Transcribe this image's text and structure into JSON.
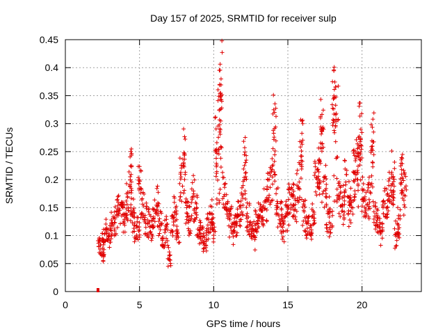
{
  "chart_data": {
    "type": "scatter",
    "title": "Day 157 of 2025, SRMTID for receiver sulp",
    "xlabel": "GPS time / hours",
    "ylabel": "SRMTID / TECUs",
    "xlim": [
      0,
      24
    ],
    "ylim": [
      0,
      0.45
    ],
    "xticks": [
      0,
      5,
      10,
      15,
      20
    ],
    "xtick_labels": [
      "0",
      "5",
      "10",
      "15",
      "20"
    ],
    "yticks": [
      0,
      0.05,
      0.1,
      0.15,
      0.2,
      0.25,
      0.3,
      0.35,
      0.4,
      0.45
    ],
    "ytick_labels": [
      "0",
      "0.05",
      "0.1",
      "0.15",
      "0.2",
      "0.25",
      "0.3",
      "0.35",
      "0.4",
      "0.45"
    ],
    "grid": true,
    "marker": "+",
    "color": "#e00000",
    "series": [
      {
        "name": "SRMTID",
        "x": [
          2.3,
          2.5,
          2.6,
          2.8,
          3.0,
          3.2,
          3.4,
          3.6,
          3.8,
          4.0,
          4.2,
          4.4,
          4.5,
          4.7,
          4.9,
          5.0,
          5.2,
          5.4,
          5.6,
          5.8,
          6.0,
          6.2,
          6.4,
          6.6,
          6.8,
          7.0,
          7.2,
          7.4,
          7.6,
          7.8,
          8.0,
          8.2,
          8.4,
          8.6,
          8.8,
          9.0,
          9.2,
          9.4,
          9.6,
          9.8,
          10.0,
          10.2,
          10.4,
          10.5,
          10.7,
          10.9,
          11.1,
          11.3,
          11.5,
          11.7,
          11.9,
          12.1,
          12.3,
          12.5,
          12.7,
          12.9,
          13.1,
          13.3,
          13.5,
          13.7,
          13.9,
          14.1,
          14.3,
          14.5,
          14.7,
          14.9,
          15.1,
          15.3,
          15.5,
          15.7,
          15.9,
          16.1,
          16.3,
          16.5,
          16.7,
          16.9,
          17.1,
          17.3,
          17.5,
          17.7,
          17.9,
          18.1,
          18.3,
          18.5,
          18.7,
          18.9,
          19.1,
          19.3,
          19.5,
          19.7,
          19.9,
          20.1,
          20.3,
          20.5,
          20.7,
          20.9,
          21.1,
          21.3,
          21.5,
          21.7,
          21.9,
          22.1,
          22.3,
          22.5,
          22.7,
          22.9
        ],
        "y": [
          0.085,
          0.07,
          0.095,
          0.11,
          0.1,
          0.12,
          0.13,
          0.14,
          0.15,
          0.13,
          0.16,
          0.22,
          0.14,
          0.12,
          0.11,
          0.2,
          0.16,
          0.13,
          0.12,
          0.11,
          0.13,
          0.15,
          0.12,
          0.09,
          0.11,
          0.06,
          0.12,
          0.14,
          0.1,
          0.19,
          0.25,
          0.15,
          0.13,
          0.17,
          0.14,
          0.11,
          0.1,
          0.09,
          0.12,
          0.13,
          0.11,
          0.27,
          0.33,
          0.39,
          0.18,
          0.15,
          0.13,
          0.11,
          0.12,
          0.14,
          0.16,
          0.24,
          0.13,
          0.11,
          0.1,
          0.12,
          0.14,
          0.13,
          0.16,
          0.19,
          0.2,
          0.3,
          0.15,
          0.13,
          0.12,
          0.14,
          0.16,
          0.17,
          0.15,
          0.2,
          0.29,
          0.14,
          0.12,
          0.11,
          0.13,
          0.2,
          0.22,
          0.29,
          0.19,
          0.14,
          0.12,
          0.35,
          0.3,
          0.17,
          0.15,
          0.2,
          0.16,
          0.15,
          0.22,
          0.25,
          0.29,
          0.18,
          0.16,
          0.17,
          0.26,
          0.14,
          0.13,
          0.11,
          0.16,
          0.15,
          0.17,
          0.21,
          0.1,
          0.12,
          0.22,
          0.18
        ]
      }
    ],
    "outlier_marker": {
      "x": 2.2,
      "y": 0.0
    }
  }
}
